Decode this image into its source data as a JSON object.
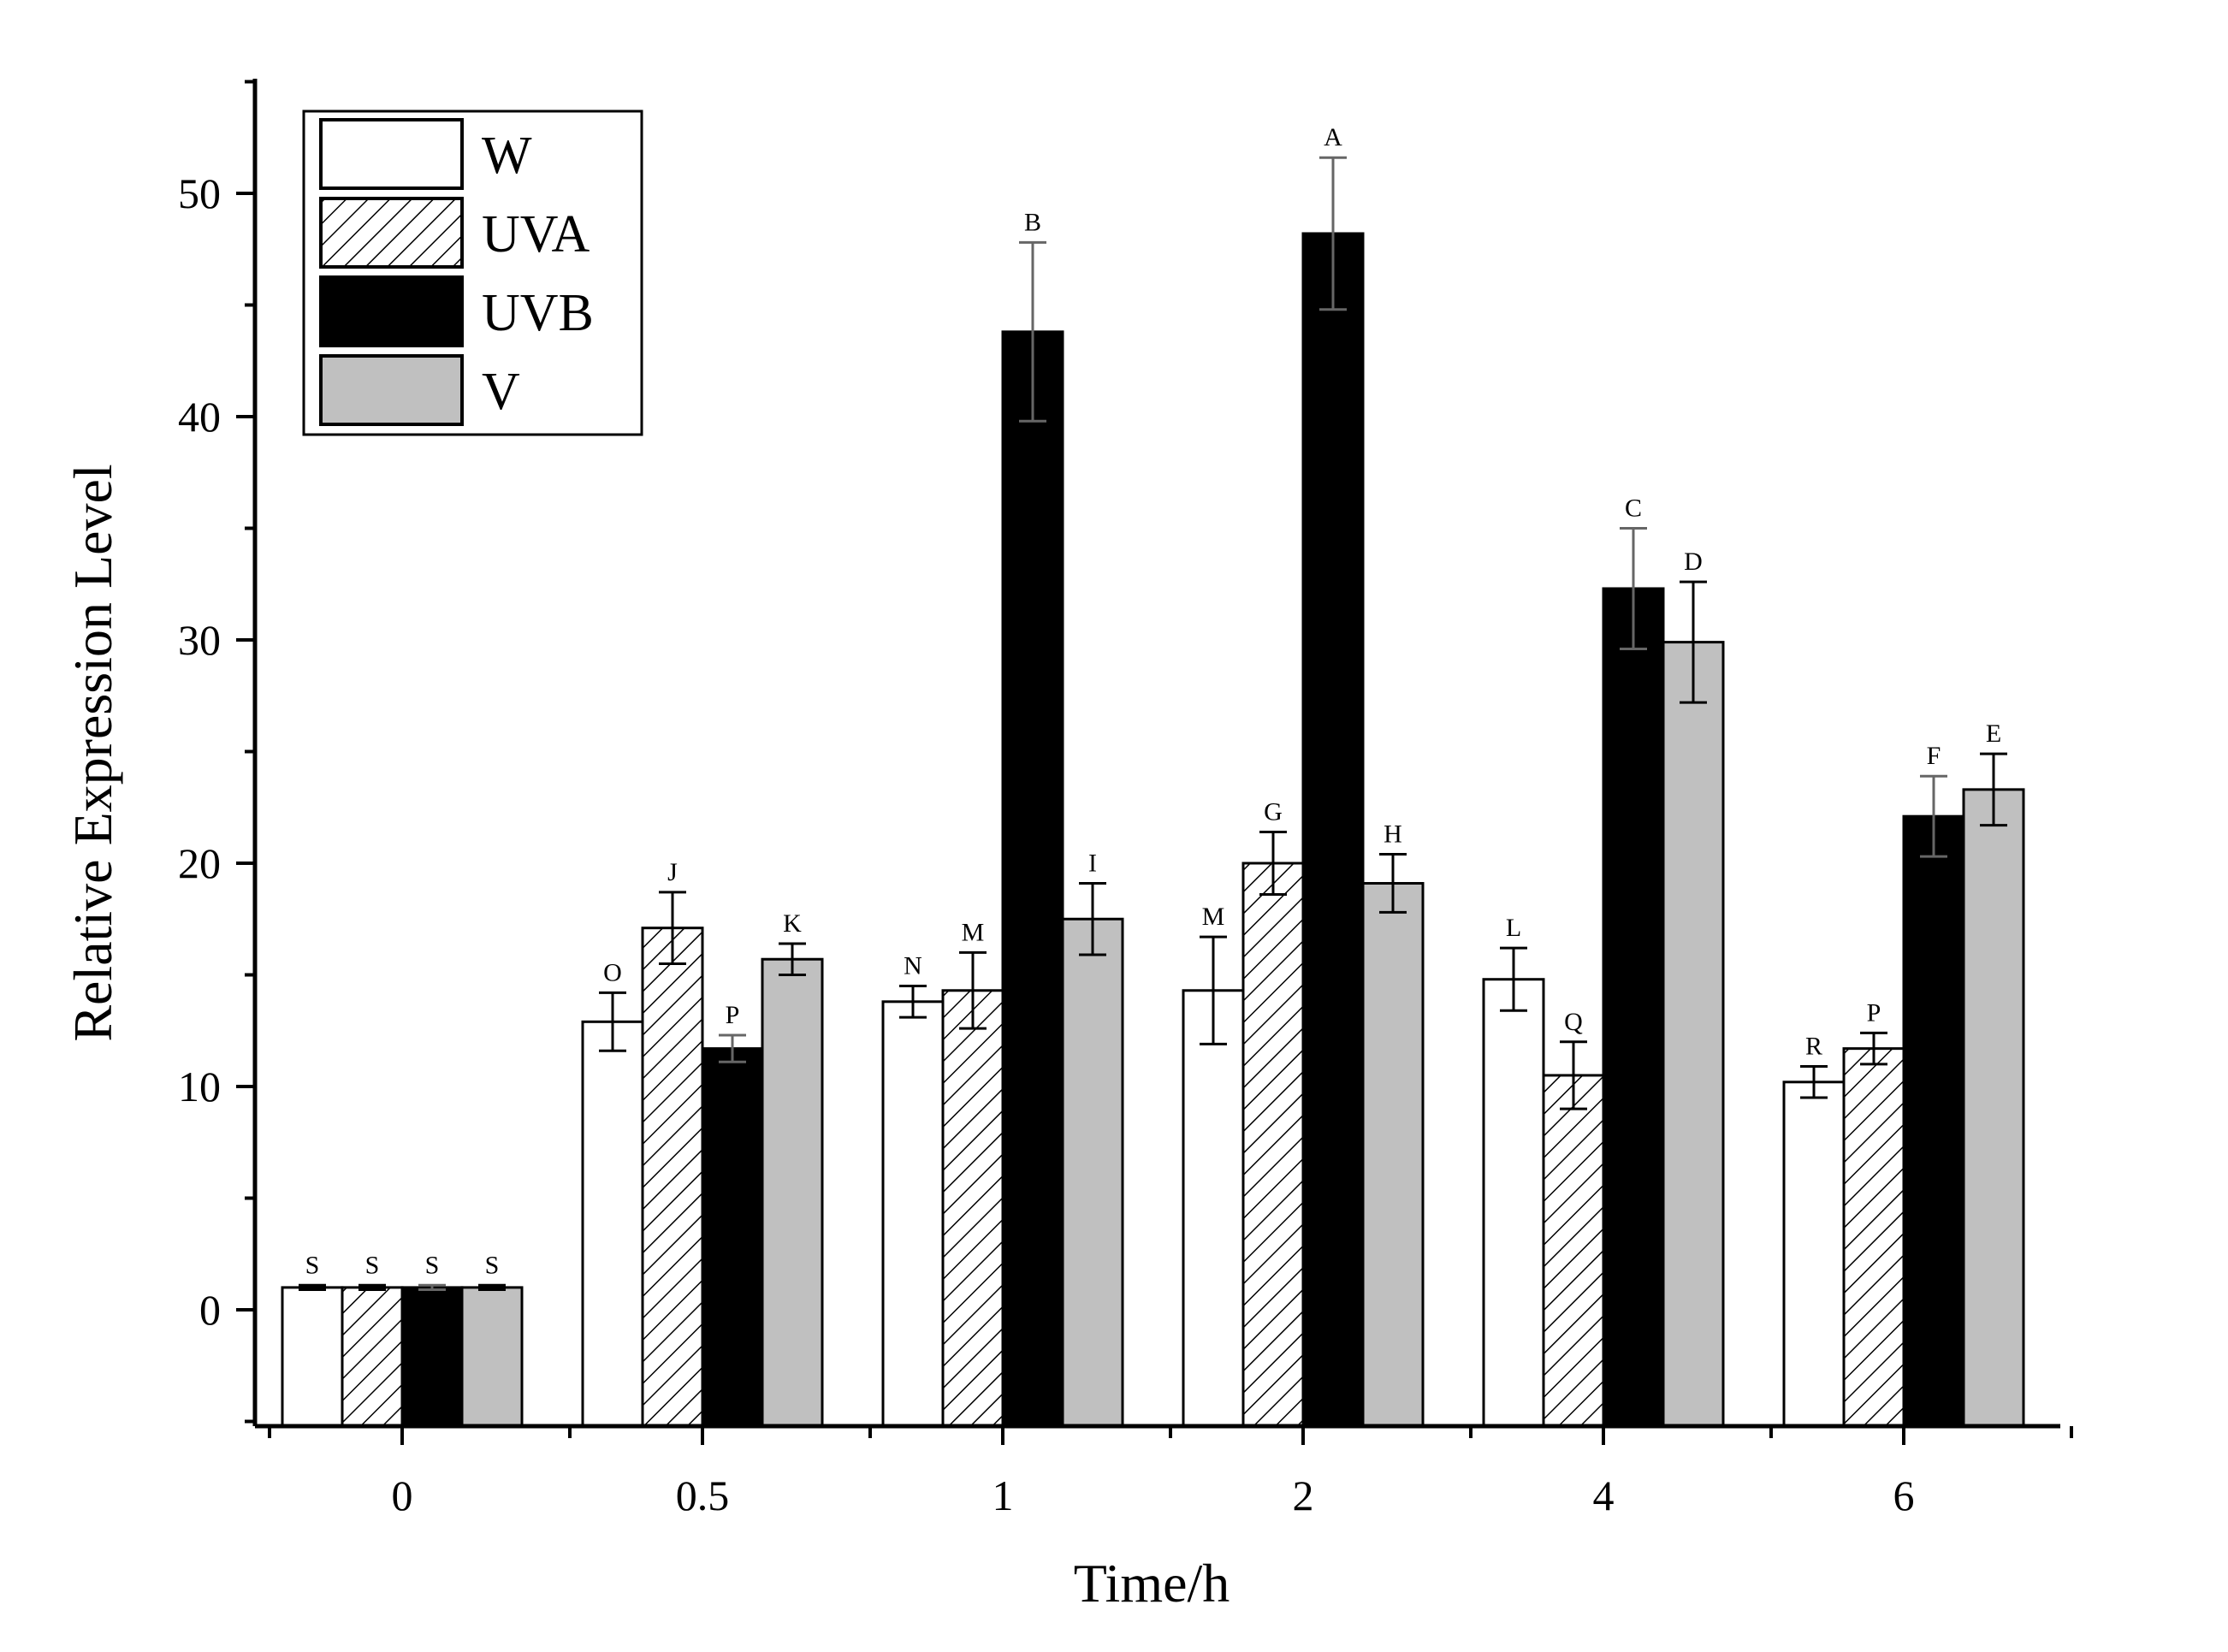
{
  "chart_data": {
    "type": "bar",
    "title": "",
    "xlabel": "Time/h",
    "ylabel": "Relative Expression Level",
    "categories": [
      "0",
      "0.5",
      "1",
      "2",
      "4",
      "6"
    ],
    "ylim": [
      -5,
      55
    ],
    "yticks": [
      0,
      10,
      20,
      30,
      40,
      50
    ],
    "grid": false,
    "legend_position": "top-left",
    "series": [
      {
        "name": "W",
        "pattern": "white",
        "values": [
          1.0,
          12.9,
          13.8,
          14.3,
          14.8,
          10.2
        ],
        "errors": [
          0.1,
          1.3,
          0.7,
          2.4,
          1.4,
          0.7
        ],
        "letters": [
          "S",
          "O",
          "N",
          "M",
          "L",
          "R"
        ]
      },
      {
        "name": "UVA",
        "pattern": "hatched",
        "values": [
          1.0,
          17.1,
          14.3,
          20.0,
          10.5,
          11.7
        ],
        "errors": [
          0.1,
          1.6,
          1.7,
          1.4,
          1.5,
          0.7
        ],
        "letters": [
          "S",
          "J",
          "M",
          "G",
          "Q",
          "P"
        ]
      },
      {
        "name": "UVB",
        "pattern": "black",
        "values": [
          1.0,
          11.7,
          43.8,
          48.2,
          32.3,
          22.1
        ],
        "errors": [
          0.1,
          0.6,
          4.0,
          3.4,
          2.7,
          1.8
        ],
        "letters": [
          "S",
          "P",
          "B",
          "A",
          "C",
          "F"
        ]
      },
      {
        "name": "V",
        "pattern": "gray",
        "values": [
          1.0,
          15.7,
          17.5,
          19.1,
          29.9,
          23.3
        ],
        "errors": [
          0.1,
          0.7,
          1.6,
          1.3,
          2.7,
          1.6
        ],
        "letters": [
          "S",
          "K",
          "I",
          "H",
          "D",
          "E"
        ]
      }
    ]
  },
  "colors": {
    "white_fill": "#ffffff",
    "black_fill": "#000000",
    "gray_fill": "#c0c0c0",
    "stroke": "#000000"
  }
}
